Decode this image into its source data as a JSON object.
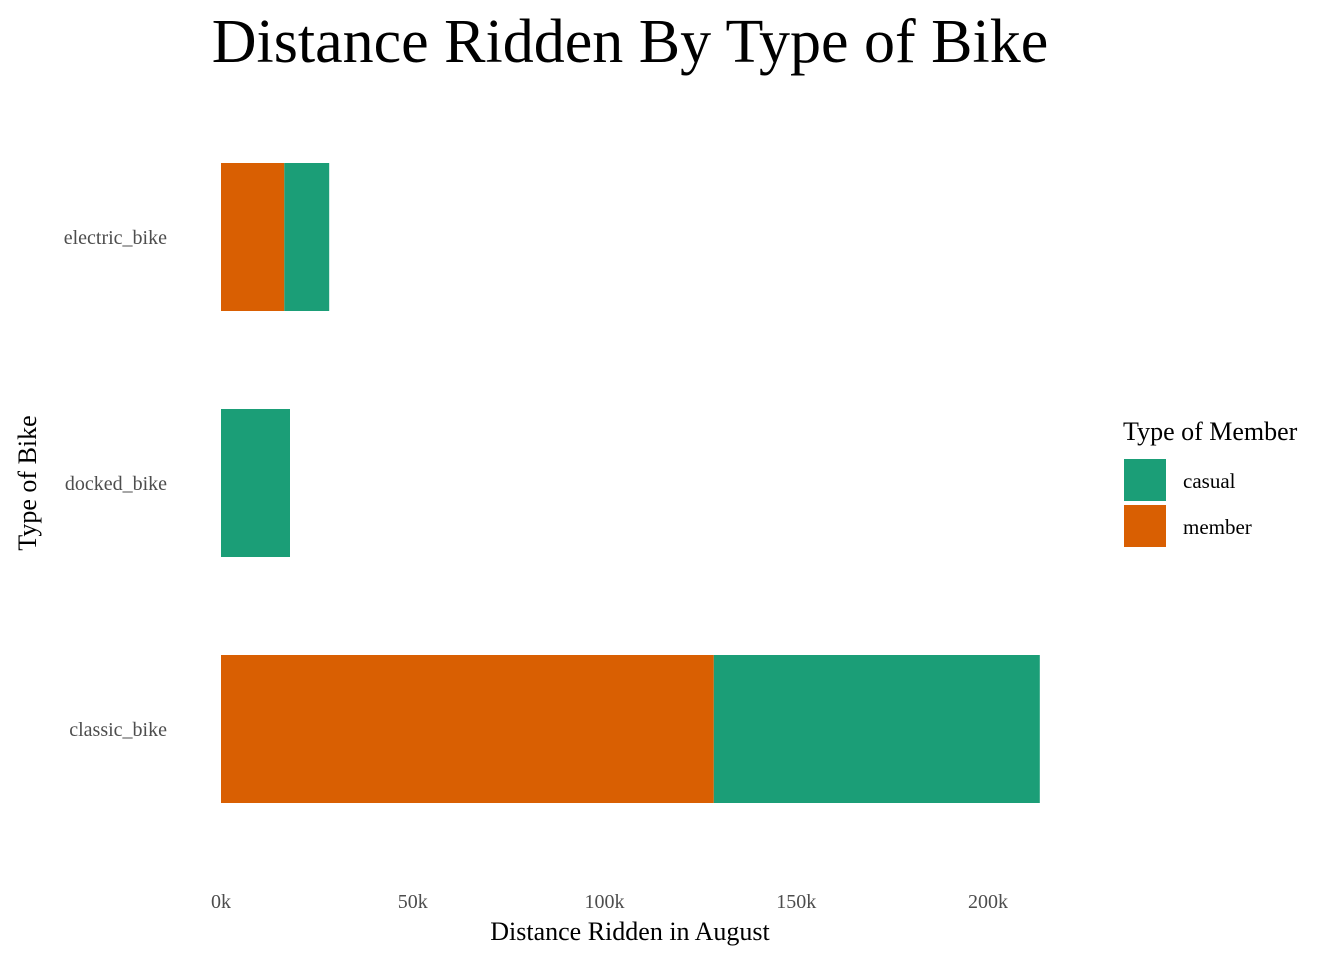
{
  "chart_data": {
    "type": "bar",
    "orientation": "horizontal",
    "stacked": true,
    "title": "Distance Ridden By Type of Bike",
    "xlabel": "Distance Ridden in August",
    "ylabel": "Type of Bike",
    "categories": [
      "electric_bike",
      "docked_bike",
      "classic_bike"
    ],
    "xlim": [
      0,
      215000
    ],
    "x_ticks": [
      {
        "value": 0,
        "label": "0k"
      },
      {
        "value": 50000,
        "label": "50k"
      },
      {
        "value": 100000,
        "label": "100k"
      },
      {
        "value": 150000,
        "label": "150k"
      },
      {
        "value": 200000,
        "label": "200k"
      }
    ],
    "grid": false,
    "legend": {
      "title": "Type of Member",
      "position": "right"
    },
    "series": [
      {
        "name": "member",
        "color": "#d95f02",
        "values": [
          16500,
          0,
          128500
        ]
      },
      {
        "name": "casual",
        "color": "#1b9e77",
        "values": [
          11700,
          18000,
          85000
        ]
      }
    ],
    "legend_order": [
      "casual",
      "member"
    ]
  }
}
